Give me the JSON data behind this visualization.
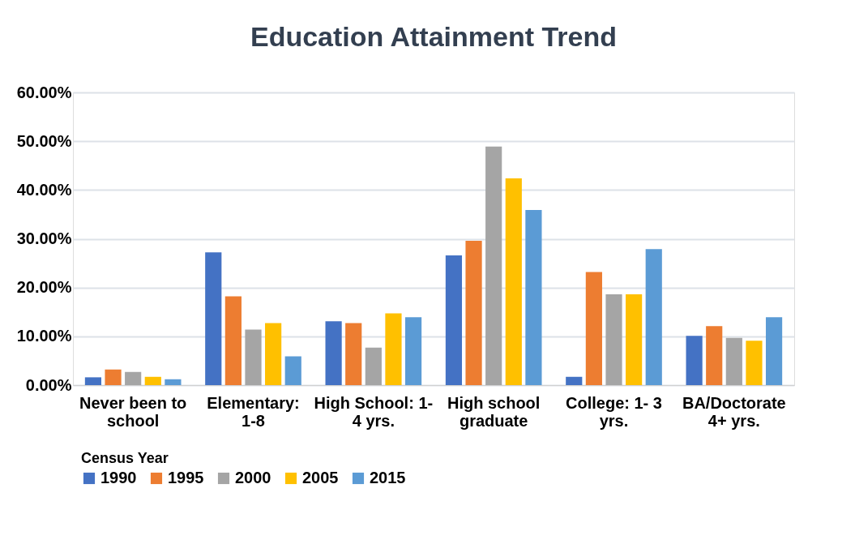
{
  "chart_data": {
    "type": "bar",
    "title": "Education Attainment Trend",
    "legend_title": "Census Year",
    "categories": [
      "Never been to school",
      "Elementary: 1-8",
      "High School: 1- 4 yrs.",
      "High school graduate",
      "College: 1- 3 yrs.",
      "BA/Doctorate 4+ yrs."
    ],
    "series": [
      {
        "name": "1990",
        "color": "#4472c4",
        "values": [
          1.6,
          27.2,
          13.1,
          26.6,
          1.7,
          10.1
        ]
      },
      {
        "name": "1995",
        "color": "#ed7d31",
        "values": [
          3.2,
          18.2,
          12.7,
          29.6,
          23.2,
          12.1
        ]
      },
      {
        "name": "2000",
        "color": "#a5a5a5",
        "values": [
          2.7,
          11.4,
          7.7,
          48.9,
          18.6,
          9.7
        ]
      },
      {
        "name": "2005",
        "color": "#ffc000",
        "values": [
          1.7,
          12.7,
          14.7,
          42.4,
          18.6,
          9.1
        ]
      },
      {
        "name": "2015",
        "color": "#5b9bd5",
        "values": [
          1.2,
          5.9,
          13.9,
          35.9,
          27.9,
          13.9
        ]
      }
    ],
    "ylim": [
      0,
      60
    ],
    "yticks": [
      {
        "value": 0,
        "label": "0.00%"
      },
      {
        "value": 10,
        "label": "10.00%"
      },
      {
        "value": 20,
        "label": "20.00%"
      },
      {
        "value": 30,
        "label": "30.00%"
      },
      {
        "value": 40,
        "label": "40.00%"
      },
      {
        "value": 50,
        "label": "50.00%"
      },
      {
        "value": 60,
        "label": "60.00%"
      }
    ],
    "grid": "y",
    "legend": "bottom"
  }
}
